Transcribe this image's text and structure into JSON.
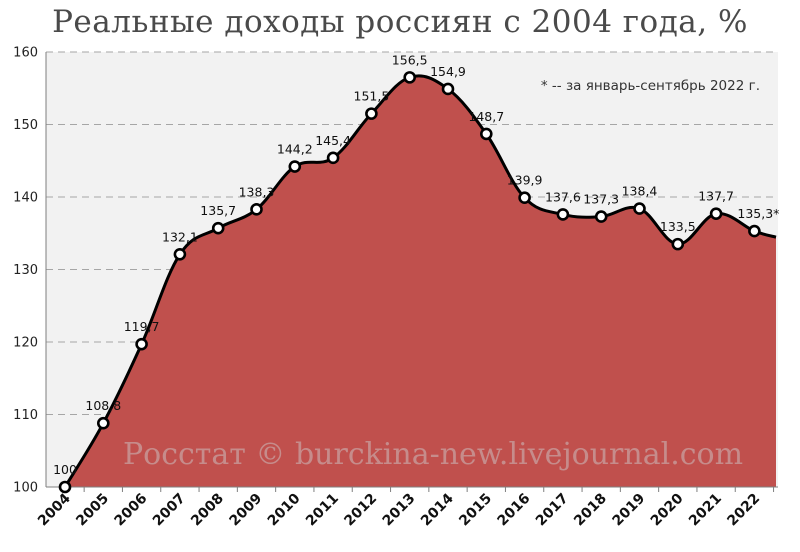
{
  "chart_data": {
    "type": "area",
    "title": "Реальные доходы россиян с 2004 года, %",
    "categories": [
      "2004",
      "2005",
      "2006",
      "2007",
      "2008",
      "2009",
      "2010",
      "2011",
      "2012",
      "2013",
      "2014",
      "2015",
      "2016",
      "2017",
      "2018",
      "2019",
      "2020",
      "2021",
      "2022"
    ],
    "x": [
      2004,
      2005,
      2006,
      2007,
      2008,
      2009,
      2010,
      2011,
      2012,
      2013,
      2014,
      2015,
      2016,
      2017,
      2018,
      2019,
      2020,
      2021,
      2022
    ],
    "series": [
      {
        "values": [
          100,
          108.8,
          119.7,
          132.1,
          135.7,
          138.3,
          144.2,
          145.4,
          151.5,
          156.5,
          154.9,
          148.7,
          139.9,
          137.6,
          137.3,
          138.4,
          133.5,
          137.7,
          135.3
        ],
        "labels": [
          "100",
          "108,8",
          "119,7",
          "132,1",
          "135,7",
          "138,3",
          "144,2",
          "145,4",
          "151,5",
          "156,5",
          "154,9",
          "148,7",
          "139,9",
          "137,6",
          "137,3",
          "138,4",
          "133,5",
          "137,7",
          "135,3*"
        ]
      }
    ],
    "ylim": [
      100,
      160
    ],
    "yticks": [
      100,
      110,
      120,
      130,
      140,
      150,
      160
    ],
    "grid": true,
    "annotation": "* -- за январь-сентябрь 2022 г.",
    "watermark": "Росстат © burckina-new.livejournal.com",
    "colors": {
      "fill": "#c0504d",
      "line": "#000000",
      "plot_bg": "#f2f2f2",
      "grid": "#a6a6a6"
    }
  }
}
